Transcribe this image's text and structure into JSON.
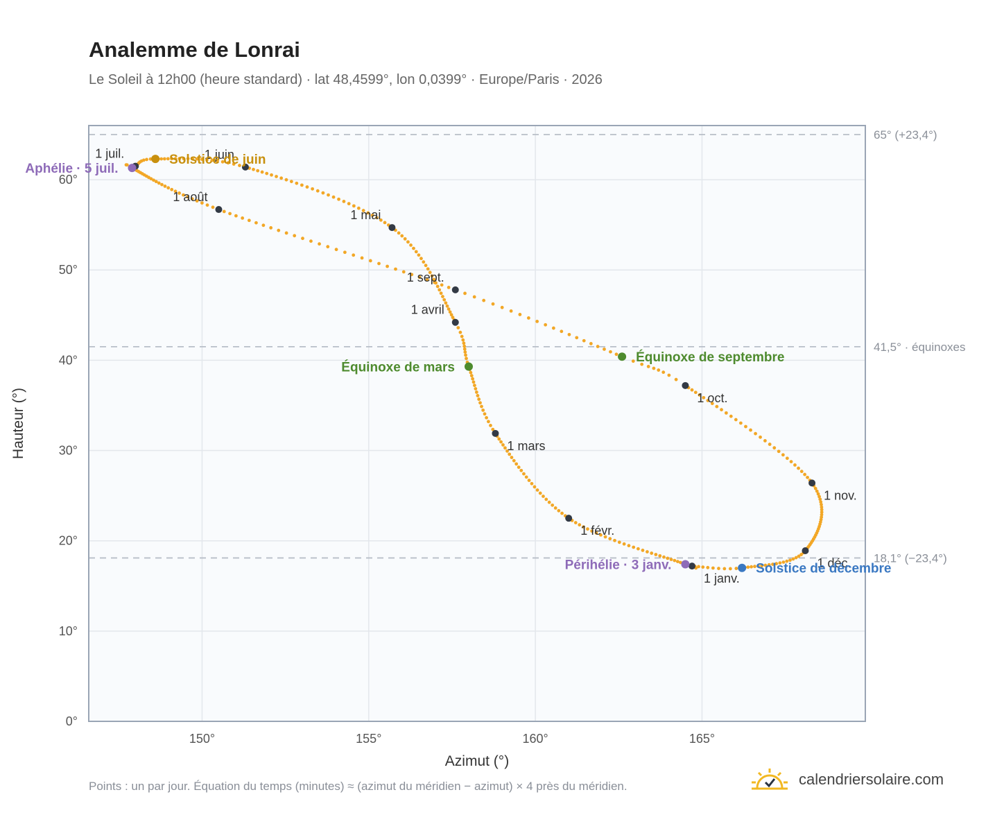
{
  "header": {
    "title": "Analemme de Lonrai",
    "subtitle": "Le Soleil à 12h00 (heure standard) · lat 48,4599°, lon 0,0399° · Europe/Paris · 2026"
  },
  "footer": {
    "note": "Points : un par jour. Équation du temps (minutes) ≈ (azimut du méridien − azimut) × 4 près du méridien.",
    "brand": "calendriersolaire.com",
    "brand_icon": "sun-calendar-icon"
  },
  "colors": {
    "curve": "#F2A726",
    "month_marker": "#333a45",
    "solstice_june": "#C8900E",
    "solstice_december": "#3A78C2",
    "equinox": "#4E8B2E",
    "aphelion_perihelion": "#8E6BB8",
    "reference_line": "#B8BEC8",
    "plot_bg": "#F9FBFD",
    "grid": "#E3E7EC",
    "frame": "#9AA5B5"
  },
  "chart_data": {
    "type": "scatter",
    "xlabel": "Azimut (°)",
    "ylabel": "Hauteur (°)",
    "xlim": [
      146.6,
      169.9
    ],
    "ylim": [
      0,
      66
    ],
    "xticks": [
      {
        "v": 150,
        "label": "150°"
      },
      {
        "v": 155,
        "label": "155°"
      },
      {
        "v": 160,
        "label": "160°"
      },
      {
        "v": 165,
        "label": "165°"
      }
    ],
    "yticks": [
      {
        "v": 0,
        "label": "0°"
      },
      {
        "v": 10,
        "label": "10°"
      },
      {
        "v": 20,
        "label": "20°"
      },
      {
        "v": 30,
        "label": "30°"
      },
      {
        "v": 40,
        "label": "40°"
      },
      {
        "v": 50,
        "label": "50°"
      },
      {
        "v": 60,
        "label": "60°"
      }
    ],
    "grid": true,
    "reference_lines": [
      {
        "y": 65.0,
        "label": "65° (+23,4°)"
      },
      {
        "y": 41.5,
        "label": "41,5° · équinoxes"
      },
      {
        "y": 18.1,
        "label": "18,1° (−23,4°)"
      }
    ],
    "series": [
      {
        "points": "one per day",
        "anchors": [
          {
            "date": "01-01",
            "x": 164.7,
            "y": 17.2
          },
          {
            "date": "01-03",
            "x": 164.5,
            "y": 17.4
          },
          {
            "date": "02-01",
            "x": 161.0,
            "y": 22.5
          },
          {
            "date": "03-01",
            "x": 158.8,
            "y": 31.9
          },
          {
            "date": "03-20",
            "x": 158.0,
            "y": 39.3
          },
          {
            "date": "04-01",
            "x": 157.6,
            "y": 44.2
          },
          {
            "date": "05-01",
            "x": 155.7,
            "y": 54.7
          },
          {
            "date": "06-01",
            "x": 151.3,
            "y": 61.4
          },
          {
            "date": "06-21",
            "x": 148.6,
            "y": 62.3
          },
          {
            "date": "07-01",
            "x": 148.0,
            "y": 61.5
          },
          {
            "date": "07-05",
            "x": 147.9,
            "y": 61.3
          },
          {
            "date": "08-01",
            "x": 150.5,
            "y": 56.7
          },
          {
            "date": "09-01",
            "x": 157.6,
            "y": 47.8
          },
          {
            "date": "09-22",
            "x": 162.6,
            "y": 40.4
          },
          {
            "date": "10-01",
            "x": 164.5,
            "y": 37.2
          },
          {
            "date": "11-01",
            "x": 168.3,
            "y": 26.4
          },
          {
            "date": "12-01",
            "x": 168.1,
            "y": 18.9
          },
          {
            "date": "12-21",
            "x": 166.2,
            "y": 17.0
          },
          {
            "date": "12-31",
            "x": 164.7,
            "y": 17.2
          }
        ]
      }
    ],
    "month_markers": [
      {
        "label": "1 janv.",
        "x": 164.7,
        "y": 17.2,
        "pos": "below-right"
      },
      {
        "label": "1 févr.",
        "x": 161.0,
        "y": 22.5,
        "pos": "below-right"
      },
      {
        "label": "1 mars",
        "x": 158.8,
        "y": 31.9,
        "pos": "below-right"
      },
      {
        "label": "1 avril",
        "x": 157.6,
        "y": 44.2,
        "pos": "above-left"
      },
      {
        "label": "1 mai",
        "x": 155.7,
        "y": 54.7,
        "pos": "above-left"
      },
      {
        "label": "1 juin",
        "x": 151.3,
        "y": 61.4,
        "pos": "above-left"
      },
      {
        "label": "1 juil.",
        "x": 148.0,
        "y": 61.5,
        "pos": "above-left"
      },
      {
        "label": "1 août",
        "x": 150.5,
        "y": 56.7,
        "pos": "above-left"
      },
      {
        "label": "1 sept.",
        "x": 157.6,
        "y": 47.8,
        "pos": "above-left"
      },
      {
        "label": "1 oct.",
        "x": 164.5,
        "y": 37.2,
        "pos": "below-right"
      },
      {
        "label": "1 nov.",
        "x": 168.3,
        "y": 26.4,
        "pos": "below-right"
      },
      {
        "label": "1 déc.",
        "x": 168.1,
        "y": 18.9,
        "pos": "below-right"
      }
    ],
    "events": [
      {
        "label": "Solstice de juin",
        "x": 148.6,
        "y": 62.3,
        "color_key": "solstice_june",
        "pos": "right"
      },
      {
        "label": "Solstice de décembre",
        "x": 166.2,
        "y": 17.0,
        "color_key": "solstice_december",
        "pos": "right"
      },
      {
        "label": "Équinoxe de mars",
        "x": 158.0,
        "y": 39.3,
        "color_key": "equinox",
        "pos": "left"
      },
      {
        "label": "Équinoxe de septembre",
        "x": 162.6,
        "y": 40.4,
        "color_key": "equinox",
        "pos": "right"
      },
      {
        "label": "Aphélie · 5 juil.",
        "x": 147.9,
        "y": 61.3,
        "color_key": "aphelion_perihelion",
        "pos": "left"
      },
      {
        "label": "Périhélie · 3 janv.",
        "x": 164.5,
        "y": 17.4,
        "color_key": "aphelion_perihelion",
        "pos": "left"
      }
    ]
  }
}
